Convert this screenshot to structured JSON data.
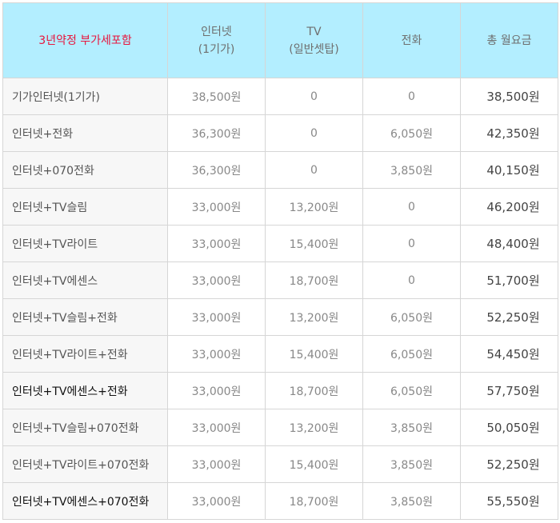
{
  "header": {
    "plan": "3년약정 부가세포함",
    "internet_line1": "인터넷",
    "internet_line2": "(1기가)",
    "tv_line1": "TV",
    "tv_line2": "(일반셋탑)",
    "phone": "전화",
    "total": "총 월요금"
  },
  "rows": [
    {
      "plan": "기가인터넷(1기가)",
      "internet": "38,500원",
      "tv": "0",
      "phone": "0",
      "total": "38,500원"
    },
    {
      "plan": "인터넷+전화",
      "internet": "36,300원",
      "tv": "0",
      "phone": "6,050원",
      "total": "42,350원"
    },
    {
      "plan": "인터넷+070전화",
      "internet": "36,300원",
      "tv": "0",
      "phone": "3,850원",
      "total": "40,150원"
    },
    {
      "plan": "인터넷+TV슬림",
      "internet": "33,000원",
      "tv": "13,200원",
      "phone": "0",
      "total": "46,200원"
    },
    {
      "plan": "인터넷+TV라이트",
      "internet": "33,000원",
      "tv": "15,400원",
      "phone": "0",
      "total": "48,400원"
    },
    {
      "plan": "인터넷+TV에센스",
      "internet": "33,000원",
      "tv": "18,700원",
      "phone": "0",
      "total": "51,700원"
    },
    {
      "plan": "인터넷+TV슬림+전화",
      "internet": "33,000원",
      "tv": "13,200원",
      "phone": "6,050원",
      "total": "52,250원"
    },
    {
      "plan": "인터넷+TV라이트+전화",
      "internet": "33,000원",
      "tv": "15,400원",
      "phone": "6,050원",
      "total": "54,450원"
    },
    {
      "plan": "인터넷+TV에센스+전화",
      "internet": "33,000원",
      "tv": "18,700원",
      "phone": "6,050원",
      "total": "57,750원"
    },
    {
      "plan": "인터넷+TV슬림+070전화",
      "internet": "33,000원",
      "tv": "13,200원",
      "phone": "3,850원",
      "total": "50,050원"
    },
    {
      "plan": "인터넷+TV라이트+070전화",
      "internet": "33,000원",
      "tv": "15,400원",
      "phone": "3,850원",
      "total": "52,250원"
    },
    {
      "plan": "인터넷+TV에센스+070전화",
      "internet": "33,000원",
      "tv": "18,700원",
      "phone": "3,850원",
      "total": "55,550원"
    }
  ],
  "colors": {
    "header_bg": "#b3eeff",
    "corner_text": "#e8143c",
    "plan_cell_bg": "#f7f7f7",
    "border": "#d6d6d6"
  }
}
